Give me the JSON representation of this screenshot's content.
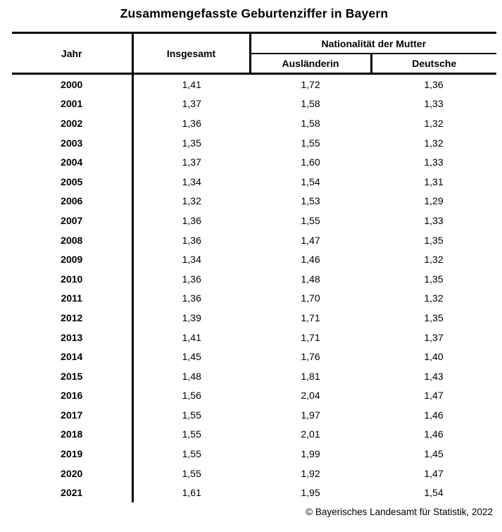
{
  "title": "Zusammengefasste Geburtenziffer in Bayern",
  "footer": "© Bayerisches Landesamt für Statistik, 2022",
  "colors": {
    "text": "#000000",
    "background": "#ffffff",
    "border": "#000000"
  },
  "table": {
    "col_jahr": "Jahr",
    "col_insgesamt": "Insgesamt",
    "group_nationalitaet": "Nationalität der Mutter",
    "col_auslaenderin": "Ausländerin",
    "col_deutsche": "Deutsche",
    "rows": [
      {
        "jahr": "2000",
        "insgesamt": "1,41",
        "auslaenderin": "1,72",
        "deutsche": "1,36"
      },
      {
        "jahr": "2001",
        "insgesamt": "1,37",
        "auslaenderin": "1,58",
        "deutsche": "1,33"
      },
      {
        "jahr": "2002",
        "insgesamt": "1,36",
        "auslaenderin": "1,58",
        "deutsche": "1,32"
      },
      {
        "jahr": "2003",
        "insgesamt": "1,35",
        "auslaenderin": "1,55",
        "deutsche": "1,32"
      },
      {
        "jahr": "2004",
        "insgesamt": "1,37",
        "auslaenderin": "1,60",
        "deutsche": "1,33"
      },
      {
        "jahr": "2005",
        "insgesamt": "1,34",
        "auslaenderin": "1,54",
        "deutsche": "1,31"
      },
      {
        "jahr": "2006",
        "insgesamt": "1,32",
        "auslaenderin": "1,53",
        "deutsche": "1,29"
      },
      {
        "jahr": "2007",
        "insgesamt": "1,36",
        "auslaenderin": "1,55",
        "deutsche": "1,33"
      },
      {
        "jahr": "2008",
        "insgesamt": "1,36",
        "auslaenderin": "1,47",
        "deutsche": "1,35"
      },
      {
        "jahr": "2009",
        "insgesamt": "1,34",
        "auslaenderin": "1,46",
        "deutsche": "1,32"
      },
      {
        "jahr": "2010",
        "insgesamt": "1,36",
        "auslaenderin": "1,48",
        "deutsche": "1,35"
      },
      {
        "jahr": "2011",
        "insgesamt": "1,36",
        "auslaenderin": "1,70",
        "deutsche": "1,32"
      },
      {
        "jahr": "2012",
        "insgesamt": "1,39",
        "auslaenderin": "1,71",
        "deutsche": "1,35"
      },
      {
        "jahr": "2013",
        "insgesamt": "1,41",
        "auslaenderin": "1,71",
        "deutsche": "1,37"
      },
      {
        "jahr": "2014",
        "insgesamt": "1,45",
        "auslaenderin": "1,76",
        "deutsche": "1,40"
      },
      {
        "jahr": "2015",
        "insgesamt": "1,48",
        "auslaenderin": "1,81",
        "deutsche": "1,43"
      },
      {
        "jahr": "2016",
        "insgesamt": "1,56",
        "auslaenderin": "2,04",
        "deutsche": "1,47"
      },
      {
        "jahr": "2017",
        "insgesamt": "1,55",
        "auslaenderin": "1,97",
        "deutsche": "1,46"
      },
      {
        "jahr": "2018",
        "insgesamt": "1,55",
        "auslaenderin": "2,01",
        "deutsche": "1,46"
      },
      {
        "jahr": "2019",
        "insgesamt": "1,55",
        "auslaenderin": "1,99",
        "deutsche": "1,45"
      },
      {
        "jahr": "2020",
        "insgesamt": "1,55",
        "auslaenderin": "1,92",
        "deutsche": "1,47"
      },
      {
        "jahr": "2021",
        "insgesamt": "1,61",
        "auslaenderin": "1,95",
        "deutsche": "1,54"
      }
    ]
  },
  "chart_data": {
    "type": "table",
    "title": "Zusammengefasste Geburtenziffer in Bayern",
    "columns": [
      "Jahr",
      "Insgesamt",
      "Ausländerin",
      "Deutsche"
    ],
    "column_groups": [
      {
        "label": "Nationalität der Mutter",
        "columns": [
          "Ausländerin",
          "Deutsche"
        ]
      }
    ],
    "rows": [
      [
        2000,
        1.41,
        1.72,
        1.36
      ],
      [
        2001,
        1.37,
        1.58,
        1.33
      ],
      [
        2002,
        1.36,
        1.58,
        1.32
      ],
      [
        2003,
        1.35,
        1.55,
        1.32
      ],
      [
        2004,
        1.37,
        1.6,
        1.33
      ],
      [
        2005,
        1.34,
        1.54,
        1.31
      ],
      [
        2006,
        1.32,
        1.53,
        1.29
      ],
      [
        2007,
        1.36,
        1.55,
        1.33
      ],
      [
        2008,
        1.36,
        1.47,
        1.35
      ],
      [
        2009,
        1.34,
        1.46,
        1.32
      ],
      [
        2010,
        1.36,
        1.48,
        1.35
      ],
      [
        2011,
        1.36,
        1.7,
        1.32
      ],
      [
        2012,
        1.39,
        1.71,
        1.35
      ],
      [
        2013,
        1.41,
        1.71,
        1.37
      ],
      [
        2014,
        1.45,
        1.76,
        1.4
      ],
      [
        2015,
        1.48,
        1.81,
        1.43
      ],
      [
        2016,
        1.56,
        2.04,
        1.47
      ],
      [
        2017,
        1.55,
        1.97,
        1.46
      ],
      [
        2018,
        1.55,
        2.01,
        1.46
      ],
      [
        2019,
        1.55,
        1.99,
        1.45
      ],
      [
        2020,
        1.55,
        1.92,
        1.47
      ],
      [
        2021,
        1.61,
        1.95,
        1.54
      ]
    ],
    "decimal_separator": ",",
    "source_note": "© Bayerisches Landesamt für Statistik, 2022"
  }
}
